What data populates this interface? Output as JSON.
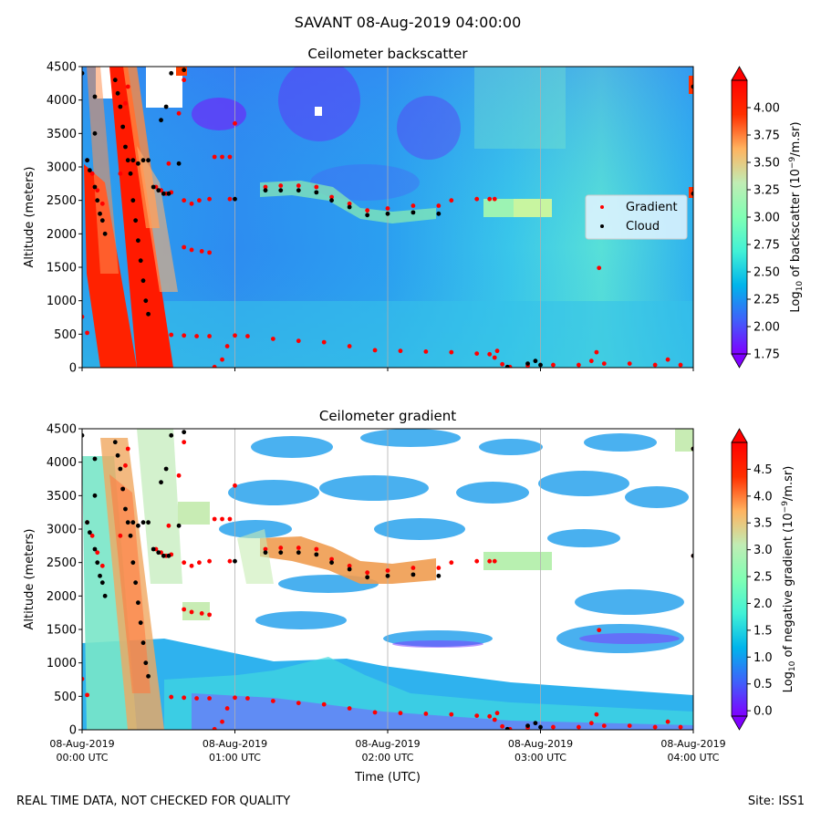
{
  "suptitle": "SAVANT 08-Aug-2019 04:00:00",
  "footer_left": "REAL TIME DATA, NOT CHECKED FOR QUALITY",
  "footer_right": "Site: ISS1",
  "colors": {
    "gradient_marker": "#ff0000",
    "cloud_marker": "#000000",
    "colormap": [
      "#7f00ff",
      "#3f61fa",
      "#00b4eb",
      "#41f1d6",
      "#80ffb4",
      "#c0ecb4",
      "#ffb360",
      "#ff3000",
      "#ff0000"
    ]
  },
  "chart_data": [
    {
      "type": "heatmap",
      "title": "Ceilometer backscatter",
      "xlabel": "",
      "ylabel": "Altitude (meters)",
      "ylim": [
        0,
        4500
      ],
      "y_ticks": [
        0,
        500,
        1000,
        1500,
        2000,
        2500,
        3000,
        3500,
        4000,
        4500
      ],
      "x_ticks": [
        "08-Aug-2019\n00:00 UTC",
        "08-Aug-2019\n01:00 UTC",
        "08-Aug-2019\n02:00 UTC",
        "08-Aug-2019\n03:00 UTC",
        "08-Aug-2019\n04:00 UTC"
      ],
      "x_tick_labels_shown": false,
      "grid": "vertical",
      "colorbar": {
        "label": "Log10 of backscatter (10^-9/m.sr)",
        "label_parts": {
          "prefix": "Log",
          "sub": "10",
          "mid": " of backscatter (10",
          "sup": "−9",
          "suffix": "/m.sr)"
        },
        "range": [
          1.75,
          4.25
        ],
        "ticks": [
          "1.75",
          "2.00",
          "2.25",
          "2.50",
          "2.75",
          "3.00",
          "3.25",
          "3.50",
          "3.75",
          "4.00"
        ],
        "extend": "both"
      },
      "legend": {
        "position": "right",
        "entries": [
          {
            "name": "Gradient",
            "color": "#ff0000"
          },
          {
            "name": "Cloud",
            "color": "#000000"
          }
        ]
      },
      "series": [
        {
          "name": "Gradient",
          "marker_color": "#ff0000",
          "points": [
            {
              "t": "00:00",
              "alt": 760
            },
            {
              "t": "00:02",
              "alt": 520
            },
            {
              "t": "00:02",
              "alt": 3100
            },
            {
              "t": "00:04",
              "alt": 2900
            },
            {
              "t": "00:06",
              "alt": 2650
            },
            {
              "t": "00:08",
              "alt": 2450
            },
            {
              "t": "00:15",
              "alt": 2900
            },
            {
              "t": "00:16",
              "alt": 3600
            },
            {
              "t": "00:17",
              "alt": 3950
            },
            {
              "t": "00:18",
              "alt": 4200
            },
            {
              "t": "00:29",
              "alt": 2700
            },
            {
              "t": "00:31",
              "alt": 2650
            },
            {
              "t": "00:33",
              "alt": 2600
            },
            {
              "t": "00:35",
              "alt": 2620
            },
            {
              "t": "00:34",
              "alt": 3050
            },
            {
              "t": "00:38",
              "alt": 3800
            },
            {
              "t": "00:40",
              "alt": 4300
            },
            {
              "t": "00:40",
              "alt": 2500
            },
            {
              "t": "00:43",
              "alt": 2450
            },
            {
              "t": "00:46",
              "alt": 2500
            },
            {
              "t": "00:50",
              "alt": 2520
            },
            {
              "t": "00:40",
              "alt": 1800
            },
            {
              "t": "00:43",
              "alt": 1760
            },
            {
              "t": "00:47",
              "alt": 1740
            },
            {
              "t": "00:50",
              "alt": 1720
            },
            {
              "t": "00:35",
              "alt": 490
            },
            {
              "t": "00:40",
              "alt": 480
            },
            {
              "t": "00:45",
              "alt": 470
            },
            {
              "t": "00:50",
              "alt": 470
            },
            {
              "t": "00:52",
              "alt": 3150
            },
            {
              "t": "00:55",
              "alt": 3150
            },
            {
              "t": "00:58",
              "alt": 3150
            },
            {
              "t": "00:58",
              "alt": 2520
            },
            {
              "t": "01:00",
              "alt": 3650
            },
            {
              "t": "00:52",
              "alt": 10
            },
            {
              "t": "00:55",
              "alt": 120
            },
            {
              "t": "00:57",
              "alt": 320
            },
            {
              "t": "01:00",
              "alt": 480
            },
            {
              "t": "01:05",
              "alt": 470
            },
            {
              "t": "01:15",
              "alt": 430
            },
            {
              "t": "01:25",
              "alt": 400
            },
            {
              "t": "01:35",
              "alt": 380
            },
            {
              "t": "01:45",
              "alt": 320
            },
            {
              "t": "01:55",
              "alt": 260
            },
            {
              "t": "02:05",
              "alt": 250
            },
            {
              "t": "02:15",
              "alt": 240
            },
            {
              "t": "02:25",
              "alt": 230
            },
            {
              "t": "02:35",
              "alt": 210
            },
            {
              "t": "02:40",
              "alt": 200
            },
            {
              "t": "01:12",
              "alt": 2700
            },
            {
              "t": "01:18",
              "alt": 2720
            },
            {
              "t": "01:25",
              "alt": 2720
            },
            {
              "t": "01:32",
              "alt": 2700
            },
            {
              "t": "01:38",
              "alt": 2550
            },
            {
              "t": "01:45",
              "alt": 2450
            },
            {
              "t": "01:52",
              "alt": 2350
            },
            {
              "t": "02:00",
              "alt": 2380
            },
            {
              "t": "02:10",
              "alt": 2420
            },
            {
              "t": "02:20",
              "alt": 2420
            },
            {
              "t": "02:25",
              "alt": 2500
            },
            {
              "t": "02:35",
              "alt": 2520
            },
            {
              "t": "02:40",
              "alt": 2520
            },
            {
              "t": "02:42",
              "alt": 2520
            },
            {
              "t": "02:42",
              "alt": 150
            },
            {
              "t": "02:43",
              "alt": 250
            },
            {
              "t": "02:45",
              "alt": 50
            },
            {
              "t": "02:48",
              "alt": 10
            },
            {
              "t": "02:55",
              "alt": 30
            },
            {
              "t": "03:05",
              "alt": 40
            },
            {
              "t": "03:15",
              "alt": 40
            },
            {
              "t": "03:20",
              "alt": 100
            },
            {
              "t": "03:22",
              "alt": 230
            },
            {
              "t": "03:23",
              "alt": 1490
            },
            {
              "t": "03:25",
              "alt": 60
            },
            {
              "t": "03:35",
              "alt": 60
            },
            {
              "t": "03:45",
              "alt": 40
            },
            {
              "t": "03:50",
              "alt": 120
            },
            {
              "t": "03:55",
              "alt": 40
            },
            {
              "t": "04:00",
              "alt": 2600
            },
            {
              "t": "04:00",
              "alt": 4200
            }
          ]
        },
        {
          "name": "Cloud",
          "marker_color": "#000000",
          "points": [
            {
              "t": "00:00",
              "alt": 4400
            },
            {
              "t": "00:02",
              "alt": 3100
            },
            {
              "t": "00:03",
              "alt": 2950
            },
            {
              "t": "00:05",
              "alt": 2700
            },
            {
              "t": "00:06",
              "alt": 2500
            },
            {
              "t": "00:07",
              "alt": 2300
            },
            {
              "t": "00:08",
              "alt": 2200
            },
            {
              "t": "00:09",
              "alt": 2000
            },
            {
              "t": "00:05",
              "alt": 4050
            },
            {
              "t": "00:05",
              "alt": 3500
            },
            {
              "t": "00:13",
              "alt": 4300
            },
            {
              "t": "00:14",
              "alt": 4100
            },
            {
              "t": "00:15",
              "alt": 3900
            },
            {
              "t": "00:16",
              "alt": 3600
            },
            {
              "t": "00:17",
              "alt": 3300
            },
            {
              "t": "00:18",
              "alt": 3100
            },
            {
              "t": "00:19",
              "alt": 2900
            },
            {
              "t": "00:20",
              "alt": 2500
            },
            {
              "t": "00:21",
              "alt": 2200
            },
            {
              "t": "00:22",
              "alt": 1900
            },
            {
              "t": "00:23",
              "alt": 1600
            },
            {
              "t": "00:24",
              "alt": 1300
            },
            {
              "t": "00:25",
              "alt": 1000
            },
            {
              "t": "00:26",
              "alt": 800
            },
            {
              "t": "00:20",
              "alt": 3100
            },
            {
              "t": "00:22",
              "alt": 3050
            },
            {
              "t": "00:24",
              "alt": 3100
            },
            {
              "t": "00:26",
              "alt": 3100
            },
            {
              "t": "00:28",
              "alt": 2700
            },
            {
              "t": "00:30",
              "alt": 2650
            },
            {
              "t": "00:32",
              "alt": 2600
            },
            {
              "t": "00:34",
              "alt": 2600
            },
            {
              "t": "00:31",
              "alt": 3700
            },
            {
              "t": "00:33",
              "alt": 3900
            },
            {
              "t": "00:35",
              "alt": 4400
            },
            {
              "t": "00:40",
              "alt": 4450
            },
            {
              "t": "00:38",
              "alt": 3050
            },
            {
              "t": "01:00",
              "alt": 2520
            },
            {
              "t": "01:12",
              "alt": 2650
            },
            {
              "t": "01:18",
              "alt": 2650
            },
            {
              "t": "01:25",
              "alt": 2650
            },
            {
              "t": "01:32",
              "alt": 2620
            },
            {
              "t": "01:38",
              "alt": 2500
            },
            {
              "t": "01:45",
              "alt": 2400
            },
            {
              "t": "01:52",
              "alt": 2280
            },
            {
              "t": "02:00",
              "alt": 2300
            },
            {
              "t": "02:10",
              "alt": 2320
            },
            {
              "t": "02:20",
              "alt": 2300
            },
            {
              "t": "02:47",
              "alt": 10
            },
            {
              "t": "02:55",
              "alt": 60
            },
            {
              "t": "02:58",
              "alt": 100
            },
            {
              "t": "03:00",
              "alt": 40
            },
            {
              "t": "04:00",
              "alt": 2600
            },
            {
              "t": "04:00",
              "alt": 4200
            }
          ]
        }
      ]
    },
    {
      "type": "heatmap",
      "title": "Ceilometer gradient",
      "xlabel": "Time (UTC)",
      "ylabel": "Altitude (meters)",
      "ylim": [
        0,
        4500
      ],
      "y_ticks": [
        0,
        500,
        1000,
        1500,
        2000,
        2500,
        3000,
        3500,
        4000,
        4500
      ],
      "x_ticks": [
        "08-Aug-2019\n00:00 UTC",
        "08-Aug-2019\n01:00 UTC",
        "08-Aug-2019\n02:00 UTC",
        "08-Aug-2019\n03:00 UTC",
        "08-Aug-2019\n04:00 UTC"
      ],
      "x_tick_labels_shown": true,
      "grid": "vertical",
      "colorbar": {
        "label": "Log10 of negative gradient (10^-9/m.sr)",
        "label_parts": {
          "prefix": "Log",
          "sub": "10",
          "mid": " of negative gradient (10",
          "sup": "−9",
          "suffix": "/m.sr)"
        },
        "range": [
          -0.1,
          5.0
        ],
        "ticks": [
          "0.0",
          "0.5",
          "1.0",
          "1.5",
          "2.0",
          "2.5",
          "3.0",
          "3.5",
          "4.0",
          "4.5"
        ],
        "extend": "both"
      }
    }
  ]
}
